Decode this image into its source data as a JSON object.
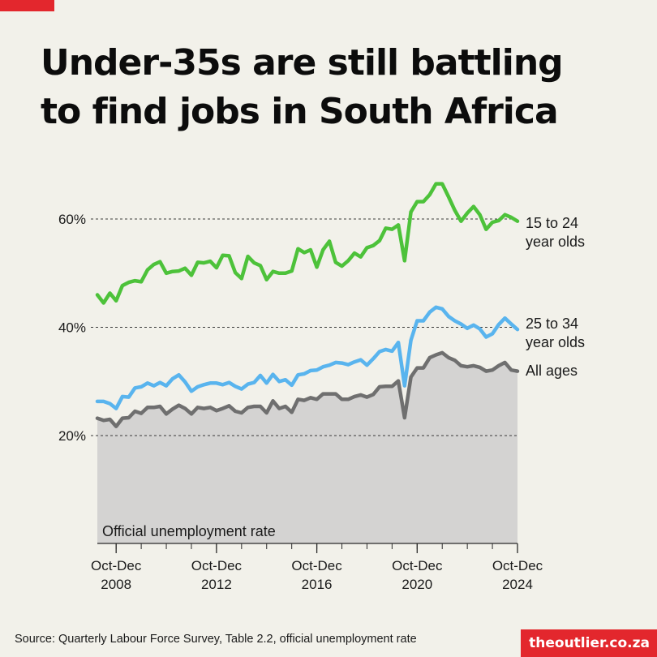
{
  "title_lines": [
    "Under-35s are still battling",
    "to find jobs in South Africa"
  ],
  "source": "Source: Quarterly Labour Force Survey, Table 2.2, official unemployment rate",
  "brand": "theoutlier.co.za",
  "colors": {
    "accent": "#e3272d",
    "youth_15_24": "#4dc23a",
    "youth_25_34": "#59b4ee",
    "all_ages": "#6f6f6f",
    "area_fill": "#d4d3d2"
  },
  "chart_data": {
    "type": "line",
    "title": "",
    "xlabel": "",
    "ylabel": "",
    "ylim": [
      0,
      70
    ],
    "y_ticks": [
      {
        "value": 20,
        "label": "20%"
      },
      {
        "value": 40,
        "label": "40%"
      },
      {
        "value": 60,
        "label": "60%"
      }
    ],
    "grid": "dashed lines at 20%, 40%, 60%",
    "x_ticks": [
      {
        "label": [
          "Oct-Dec",
          "2008"
        ]
      },
      {
        "label": [
          "Oct-Dec",
          "2012"
        ]
      },
      {
        "label": [
          "Oct-Dec",
          "2016"
        ]
      },
      {
        "label": [
          "Oct-Dec",
          "2020"
        ]
      },
      {
        "label": [
          "Oct-Dec",
          "2024"
        ]
      }
    ],
    "x_start": "Jan-Mar 2008",
    "x_end": "Oct-Dec 2024",
    "area_label": "Official unemployment rate",
    "series": [
      {
        "name": "15 to 24 year olds",
        "label_lines": [
          "15 to 24",
          "year olds"
        ],
        "color_key": "youth_15_24",
        "values": [
          46.0,
          44.5,
          46.3,
          44.9,
          47.7,
          48.3,
          48.6,
          48.4,
          50.6,
          51.6,
          52.1,
          50.0,
          50.3,
          50.4,
          50.9,
          49.6,
          52.0,
          51.9,
          52.2,
          51.0,
          53.3,
          53.2,
          50.1,
          49.0,
          53.1,
          51.9,
          51.4,
          48.8,
          50.3,
          50.0,
          50.0,
          50.4,
          54.5,
          53.8,
          54.3,
          51.1,
          54.3,
          55.9,
          52.0,
          51.3,
          52.3,
          53.7,
          53.0,
          54.7,
          55.1,
          56.0,
          58.3,
          58.1,
          58.9,
          52.3,
          61.3,
          63.2,
          63.2,
          64.5,
          66.5,
          66.5,
          64.1,
          61.6,
          59.6,
          61.1,
          62.3,
          60.8,
          58.1,
          59.4,
          59.7,
          60.8,
          60.3,
          59.6
        ]
      },
      {
        "name": "25 to 34 year olds",
        "label_lines": [
          "25 to 34",
          "year olds"
        ],
        "color_key": "youth_25_34",
        "values": [
          26.3,
          26.3,
          25.9,
          25.0,
          27.2,
          27.1,
          28.8,
          29.0,
          29.7,
          29.2,
          29.8,
          29.2,
          30.5,
          31.2,
          29.9,
          28.2,
          29.0,
          29.4,
          29.7,
          29.7,
          29.4,
          29.8,
          29.1,
          28.6,
          29.5,
          29.8,
          31.1,
          29.7,
          31.3,
          30.0,
          30.3,
          29.3,
          31.2,
          31.4,
          32.0,
          32.1,
          32.7,
          33.0,
          33.5,
          33.4,
          33.1,
          33.6,
          34.0,
          33.0,
          34.2,
          35.5,
          35.9,
          35.6,
          37.2,
          29.2,
          37.6,
          41.2,
          41.2,
          42.8,
          43.7,
          43.4,
          42.0,
          41.2,
          40.6,
          39.8,
          40.4,
          39.7,
          38.2,
          38.8,
          40.5,
          41.7,
          40.6,
          39.6
        ]
      },
      {
        "name": "All ages",
        "label_lines": [
          "All ages"
        ],
        "color_key": "all_ages",
        "values": [
          23.2,
          22.8,
          23.0,
          21.7,
          23.2,
          23.3,
          24.5,
          24.1,
          25.2,
          25.2,
          25.4,
          24.0,
          24.9,
          25.6,
          25.0,
          24.0,
          25.2,
          25.0,
          25.2,
          24.6,
          25.0,
          25.5,
          24.5,
          24.2,
          25.2,
          25.4,
          25.4,
          24.2,
          26.4,
          25.0,
          25.4,
          24.3,
          26.7,
          26.5,
          27.0,
          26.7,
          27.7,
          27.7,
          27.7,
          26.7,
          26.7,
          27.2,
          27.5,
          27.1,
          27.6,
          29.0,
          29.1,
          29.1,
          30.1,
          23.3,
          30.8,
          32.5,
          32.5,
          34.4,
          34.9,
          35.3,
          34.4,
          33.9,
          32.9,
          32.7,
          32.9,
          32.6,
          31.9,
          32.1,
          32.9,
          33.5,
          32.1,
          31.9
        ]
      }
    ]
  }
}
